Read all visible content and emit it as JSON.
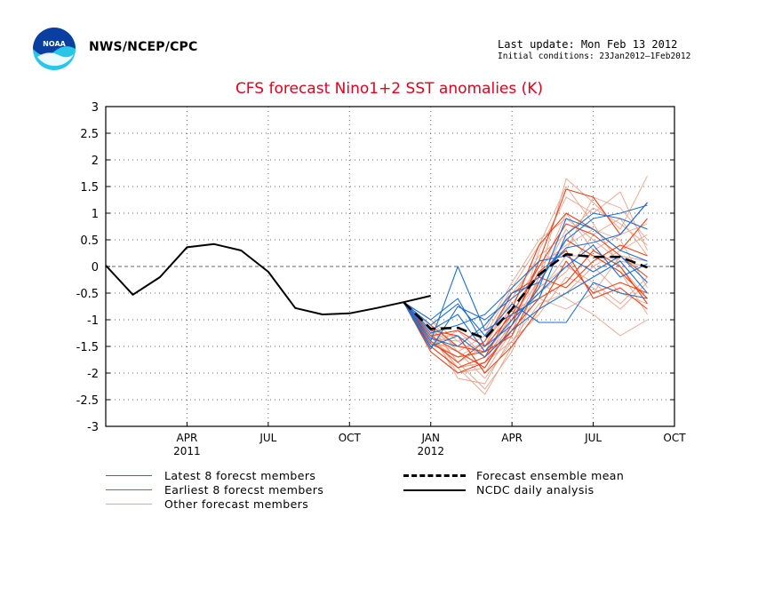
{
  "header": {
    "agency": "NWS/NCEP/CPC",
    "last_update": "Last update: Mon Feb 13 2012",
    "initial_conditions": "Initial conditions: 23Jan2012—1Feb2012",
    "logo_icon": "noaa-logo-icon"
  },
  "colors": {
    "title": "#e0001c",
    "latest": "#1e6fd0",
    "earliest": "#e8441a",
    "other": "#e9a58f",
    "mean": "#000000",
    "observed": "#000000"
  },
  "chart_data": {
    "type": "line",
    "title": "CFS forecast Nino1+2 SST anomalies (K)",
    "xlabel": "",
    "ylabel": "",
    "ylim": [
      -3,
      3
    ],
    "yticks": [
      "3",
      "2.5",
      "2",
      "1.5",
      "1",
      "0.5",
      "0",
      "-0.5",
      "-1",
      "-1.5",
      "-2",
      "-2.5",
      "-3"
    ],
    "xticks": [
      {
        "month": "APR",
        "year": "2011",
        "x": "2011-04"
      },
      {
        "month": "JUL",
        "year": "",
        "x": "2011-07"
      },
      {
        "month": "OCT",
        "year": "",
        "x": "2011-10"
      },
      {
        "month": "JAN",
        "year": "2012",
        "x": "2012-01"
      },
      {
        "month": "APR",
        "year": "",
        "x": "2012-04"
      },
      {
        "month": "JUL",
        "year": "",
        "x": "2012-07"
      },
      {
        "month": "OCT",
        "year": "",
        "x": "2012-10"
      }
    ],
    "grid": true,
    "zero_line": true,
    "observed": {
      "name": "NCDC daily analysis",
      "points": [
        [
          "2011-01",
          0.02
        ],
        [
          "2011-02",
          -0.53
        ],
        [
          "2011-03",
          -0.2
        ],
        [
          "2011-04",
          0.36
        ],
        [
          "2011-05",
          0.42
        ],
        [
          "2011-06",
          0.3
        ],
        [
          "2011-07",
          -0.1
        ],
        [
          "2011-08",
          -0.78
        ],
        [
          "2011-09",
          -0.9
        ],
        [
          "2011-10",
          -0.88
        ],
        [
          "2011-11",
          -0.78
        ],
        [
          "2011-12",
          -0.67
        ],
        [
          "2012-01",
          -0.55
        ]
      ]
    },
    "forecast_months": [
      "2011-12",
      "2012-01",
      "2012-02",
      "2012-03",
      "2012-04",
      "2012-05",
      "2012-06",
      "2012-07",
      "2012-08",
      "2012-09"
    ],
    "ensemble_mean": {
      "name": "Forecast ensemble mean",
      "values": [
        -0.67,
        -1.17,
        -1.15,
        -1.35,
        -0.8,
        -0.15,
        0.23,
        0.18,
        0.18,
        -0.02
      ]
    },
    "latest_members": {
      "name": "Latest 8 forecst members",
      "series": [
        [
          -0.67,
          -1.55,
          -0.75,
          -1.0,
          -0.6,
          -0.2,
          0.35,
          0.45,
          0.6,
          1.2
        ],
        [
          -0.67,
          -1.4,
          0.0,
          -1.2,
          -0.9,
          -0.6,
          0.6,
          1.0,
          0.9,
          0.7
        ],
        [
          -0.67,
          -1.0,
          -0.6,
          -1.5,
          -1.1,
          -0.4,
          0.9,
          0.7,
          0.3,
          0.1
        ],
        [
          -0.67,
          -1.25,
          -1.1,
          -0.9,
          -0.4,
          0.1,
          0.2,
          -0.1,
          0.2,
          -0.3
        ],
        [
          -0.67,
          -1.5,
          -1.3,
          -1.7,
          -1.2,
          -0.8,
          -0.5,
          -0.2,
          0.1,
          -0.5
        ],
        [
          -0.67,
          -1.1,
          -0.7,
          -1.3,
          -0.7,
          -1.05,
          -1.05,
          -0.3,
          -0.5,
          -0.6
        ],
        [
          -0.67,
          -1.35,
          -1.5,
          -1.1,
          -0.5,
          -0.3,
          0.5,
          0.9,
          1.0,
          1.15
        ],
        [
          -0.67,
          -1.2,
          -0.9,
          -1.6,
          -1.0,
          -0.5,
          0.0,
          0.4,
          -0.2,
          0.05
        ]
      ]
    },
    "earliest_members": {
      "name": "Earliest 8 forecst members",
      "series": [
        [
          -0.67,
          -1.3,
          -1.6,
          -1.9,
          -1.1,
          0.1,
          1.45,
          1.3,
          0.6,
          1.2
        ],
        [
          -0.67,
          -1.5,
          -1.9,
          -1.7,
          -0.8,
          0.4,
          1.0,
          0.7,
          0.3,
          0.9
        ],
        [
          -0.67,
          -1.1,
          -1.5,
          -1.6,
          -1.3,
          -0.3,
          0.5,
          0.2,
          -0.1,
          -0.6
        ],
        [
          -0.67,
          -1.4,
          -1.8,
          -1.4,
          -0.5,
          -0.2,
          -0.4,
          0.1,
          0.4,
          0.2
        ],
        [
          -0.67,
          -1.2,
          -1.3,
          -2.0,
          -1.5,
          -0.8,
          0.1,
          -0.5,
          -0.3,
          -0.5
        ],
        [
          -0.67,
          -1.6,
          -2.0,
          -1.8,
          -1.2,
          -0.6,
          -0.3,
          0.3,
          0.0,
          -0.7
        ],
        [
          -0.67,
          -1.3,
          -1.2,
          -1.5,
          -0.9,
          0.0,
          0.8,
          0.6,
          0.2,
          -0.2
        ],
        [
          -0.67,
          -1.45,
          -1.7,
          -1.6,
          -1.0,
          -0.1,
          0.3,
          -0.6,
          -0.4,
          -0.8
        ]
      ]
    },
    "other_members": {
      "name": "Other forecast members",
      "series": [
        [
          -0.67,
          -1.3,
          -1.9,
          -2.4,
          -1.5,
          -0.2,
          1.65,
          1.2,
          0.7,
          1.7
        ],
        [
          -0.67,
          -1.2,
          -2.1,
          -2.2,
          -1.3,
          0.3,
          1.3,
          1.0,
          1.4,
          0.3
        ],
        [
          -0.67,
          -1.5,
          -1.9,
          -1.8,
          -0.9,
          -0.3,
          -0.6,
          -0.9,
          -1.3,
          -1.0
        ],
        [
          -0.67,
          -1.0,
          -1.4,
          -1.2,
          -0.3,
          0.5,
          0.9,
          0.5,
          0.1,
          0.0
        ],
        [
          -0.67,
          -1.4,
          -1.6,
          -2.1,
          -1.4,
          -0.7,
          -0.5,
          0.0,
          0.3,
          0.6
        ],
        [
          -0.67,
          -1.1,
          -1.8,
          -1.5,
          -0.6,
          0.2,
          0.6,
          1.1,
          0.8,
          0.4
        ],
        [
          -0.67,
          -1.5,
          -1.2,
          -1.7,
          -1.1,
          -0.4,
          0.0,
          -0.3,
          -0.7,
          -0.2
        ],
        [
          -0.67,
          -1.3,
          -2.0,
          -1.9,
          -1.0,
          -0.5,
          0.2,
          0.2,
          -0.1,
          -0.9
        ],
        [
          -0.67,
          -1.2,
          -1.5,
          -1.6,
          -0.7,
          0.0,
          0.4,
          0.7,
          0.5,
          -0.4
        ],
        [
          -0.67,
          -1.4,
          -1.7,
          -1.4,
          -0.8,
          -0.6,
          -0.8,
          -0.5,
          0.2,
          0.1
        ],
        [
          -0.67,
          -1.3,
          -1.3,
          -2.0,
          -1.2,
          -0.2,
          1.0,
          0.3,
          0.6,
          0.8
        ],
        [
          -0.67,
          -1.0,
          -1.6,
          -1.3,
          -0.4,
          0.4,
          1.5,
          0.8,
          0.0,
          -0.6
        ],
        [
          -0.67,
          -1.25,
          -1.9,
          -1.8,
          -1.4,
          -0.9,
          -0.2,
          -0.4,
          -0.8,
          -0.3
        ],
        [
          -0.67,
          -1.45,
          -1.5,
          -1.5,
          -0.5,
          0.1,
          0.3,
          1.3,
          1.1,
          0.5
        ],
        [
          -0.67,
          -1.15,
          -1.8,
          -2.3,
          -1.6,
          -0.3,
          0.7,
          0.0,
          -0.5,
          -0.7
        ],
        [
          -0.67,
          -1.35,
          -1.4,
          -1.7,
          -0.9,
          -0.5,
          -0.1,
          0.6,
          0.9,
          0.2
        ]
      ]
    },
    "legend": [
      {
        "key": "latest",
        "label": "Latest 8 forecst members"
      },
      {
        "key": "earliest",
        "label": "Earliest 8 forecst members"
      },
      {
        "key": "other",
        "label": "Other forecast members"
      },
      {
        "key": "mean",
        "label": "Forecast ensemble mean"
      },
      {
        "key": "observed",
        "label": "NCDC daily analysis"
      }
    ]
  }
}
